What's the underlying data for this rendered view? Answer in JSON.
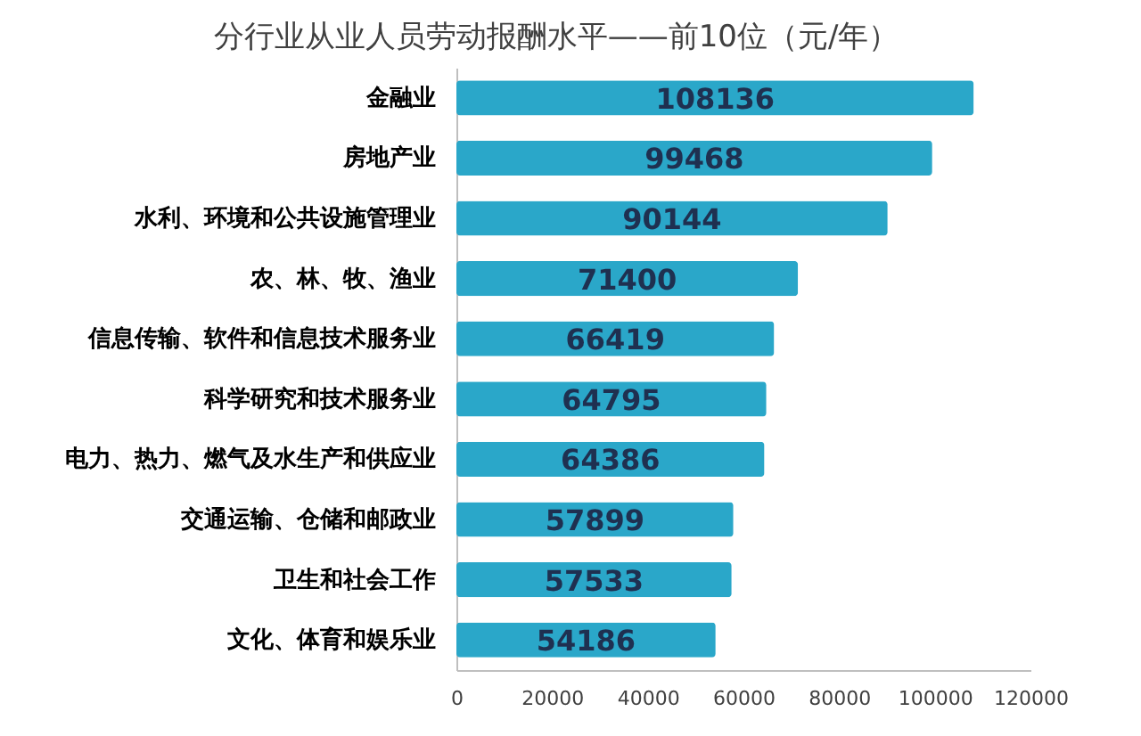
{
  "chart_data": {
    "type": "bar",
    "orientation": "horizontal",
    "title": "分行业从业人员劳动报酬水平——前10位（元/年）",
    "categories": [
      "金融业",
      "房地产业",
      "水利、环境和公共设施管理业",
      "农、林、牧、渔业",
      "信息传输、软件和信息技术服务业",
      "科学研究和技术服务业",
      "电力、热力、燃气及水生产和供应业",
      "交通运输、仓储和邮政业",
      "卫生和社会工作",
      "文化、体育和娱乐业"
    ],
    "values": [
      108136,
      99468,
      90144,
      71400,
      66419,
      64795,
      64386,
      57899,
      57533,
      54186
    ],
    "color": "#2aa7c9",
    "xlim": [
      0,
      120000
    ],
    "xticks": [
      0,
      20000,
      40000,
      60000,
      80000,
      100000,
      120000
    ],
    "data_labels": true
  }
}
